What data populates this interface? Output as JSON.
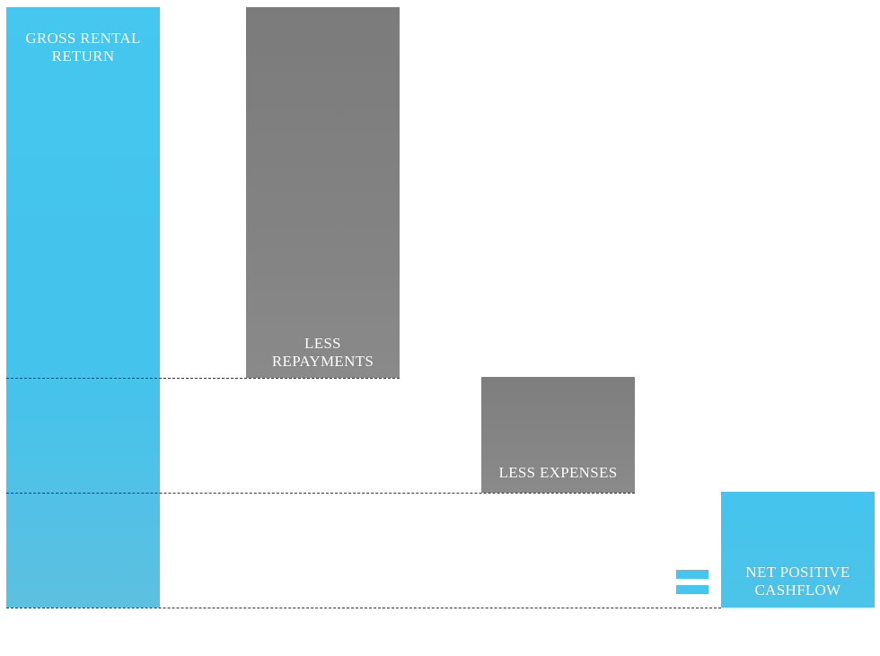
{
  "diagram": {
    "bars": {
      "gross": {
        "line1": "GROSS RENTAL",
        "line2": "RETURN",
        "color": "#45c7ef"
      },
      "repayments": {
        "line1": "LESS",
        "line2": "REPAYMENTS",
        "color": "#7b7b7b"
      },
      "expenses": {
        "line1": "LESS EXPENSES",
        "color": "#7e7e7e"
      },
      "net": {
        "line1": "NET POSITIVE",
        "line2": "CASHFLOW",
        "color": "#44c4ee"
      }
    },
    "equals_sign": {
      "symbol": "equals-sign-icon",
      "color": "#47c5ee"
    }
  }
}
